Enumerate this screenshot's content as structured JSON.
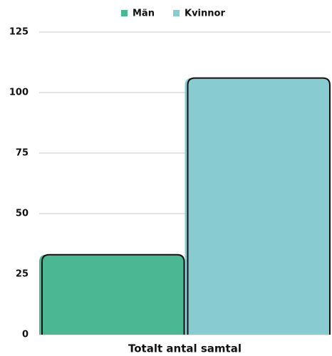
{
  "chart_data": {
    "type": "bar",
    "categories": [
      "Totalt antal samtal"
    ],
    "series": [
      {
        "name": "Män",
        "color": "#4cb893",
        "values": [
          33
        ]
      },
      {
        "name": "Kvinnor",
        "color": "#88cbd0",
        "values": [
          106
        ]
      }
    ],
    "ylim": [
      0,
      125
    ],
    "yticks": [
      0,
      25,
      50,
      75,
      100,
      125
    ],
    "grid": true,
    "legend": "top"
  }
}
